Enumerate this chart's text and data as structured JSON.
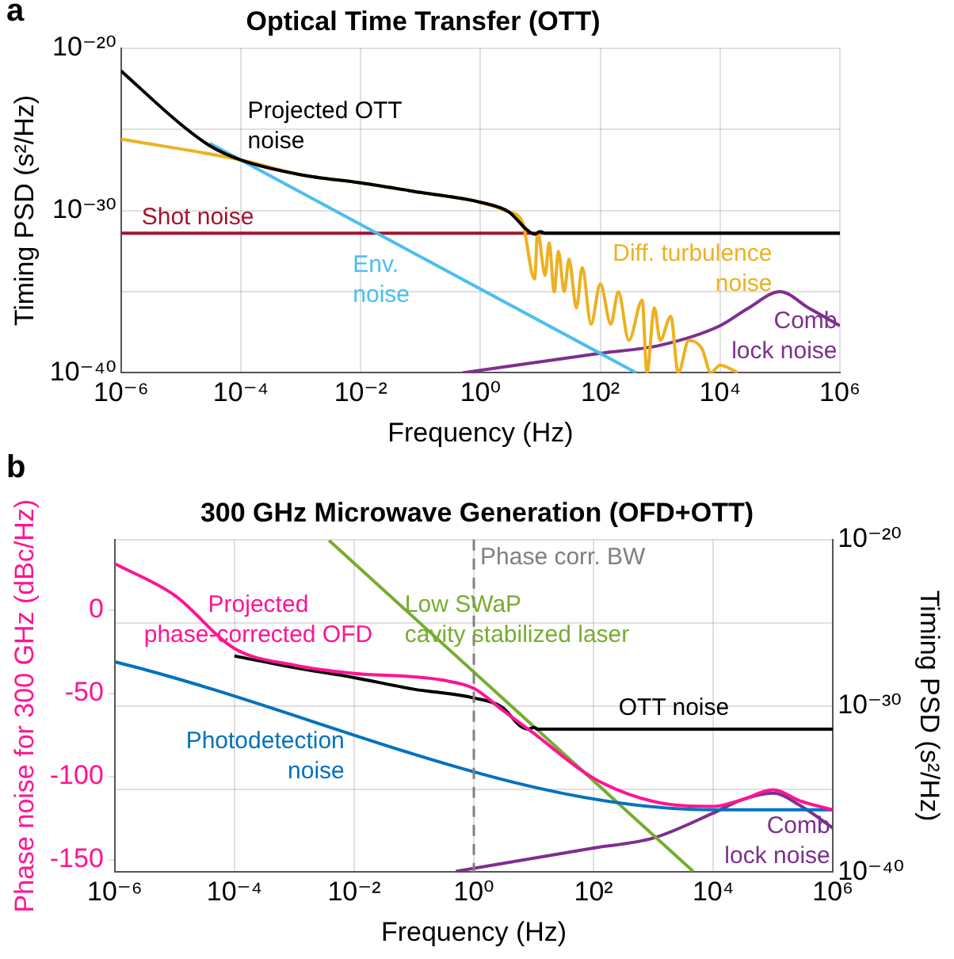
{
  "chart_data": [
    {
      "type": "line",
      "title": "Optical Time Transfer (OTT)",
      "xlabel": "Frequency (Hz)",
      "ylabel": "Timing PSD (s²/Hz)",
      "annotations": [
        "a"
      ],
      "log": "xy",
      "grid": true,
      "legend": false,
      "marker": "none",
      "line_style": "solid",
      "xlim": [
        1e-06,
        1000000.0
      ],
      "ylim": [
        1e-40,
        1e-20
      ],
      "xticks": [
        {
          "value": 1e-06,
          "label": "10⁻⁶"
        },
        {
          "value": 0.0001,
          "label": "10⁻⁴"
        },
        {
          "value": 0.01,
          "label": "10⁻²"
        },
        {
          "value": 1,
          "label": "10⁰"
        },
        {
          "value": 100,
          "label": "10²"
        },
        {
          "value": 10000,
          "label": "10⁴"
        },
        {
          "value": 1000000,
          "label": "10⁶"
        }
      ],
      "yticks": [
        {
          "value": 1e-40,
          "label": "10⁻⁴⁰"
        },
        {
          "value": 1e-35,
          "label": null
        },
        {
          "value": 1e-30,
          "label": "10⁻³⁰"
        },
        {
          "value": 1e-25,
          "label": null
        },
        {
          "value": 1e-20,
          "label": "10⁻²⁰"
        }
      ],
      "series": [
        {
          "name": "Projected OTT noise",
          "color": "#000000",
          "x": [
            1e-06,
            1e-05,
            3e-05,
            0.0001,
            0.001,
            0.01,
            0.1,
            1,
            3,
            6,
            8,
            10,
            12,
            1000000.0
          ],
          "values": [
            4e-22,
            2e-25,
            1e-26,
            1.3e-27,
            1.6e-28,
            5e-29,
            1.3e-29,
            3.2e-30,
            8e-31,
            6.3e-32,
            3.5e-32,
            5e-32,
            4e-32,
            4e-32
          ]
        },
        {
          "name": "Diff. turbulence noise",
          "color": "#edb120",
          "x": [
            1e-06,
            0.0001,
            0.001,
            0.01,
            0.1,
            1,
            3,
            5,
            8,
            9,
            12,
            14,
            17,
            20,
            25,
            30,
            40,
            50,
            70,
            100,
            150,
            200,
            300,
            500,
            600,
            800,
            1000,
            1500,
            2000,
            3000,
            5000,
            7000,
            10000,
            20000
          ],
          "values": [
            2.5e-26,
            1.3e-27,
            1.6e-28,
            5e-29,
            1.3e-29,
            3.2e-30,
            8e-31,
            2e-31,
            6e-35,
            5e-32,
            1e-34,
            1e-32,
            1e-35,
            3e-33,
            1e-35,
            1e-33,
            1e-36,
            3e-34,
            1e-37,
            3e-35,
            1e-37,
            1e-35,
            1e-38,
            3e-36,
            1e-40,
            1e-36,
            1e-38,
            3e-37,
            1e-40,
            1e-38,
            3e-39,
            1e-40,
            3e-40,
            1e-40
          ]
        },
        {
          "name": "Env. noise",
          "color": "#4dbeee",
          "x": [
            3e-05,
            400
          ],
          "values": [
            1.4e-26,
            1e-40
          ]
        },
        {
          "name": "Shot noise",
          "color": "#a2142f",
          "x": [
            1e-06,
            1000000.0
          ],
          "values": [
            4e-32,
            4e-32
          ]
        },
        {
          "name": "Comb lock noise",
          "color": "#7e2f8e",
          "x": [
            0.5,
            100,
            1000,
            10000,
            30000,
            100000,
            300000,
            1000000
          ],
          "values": [
            1e-40,
            1.6e-39,
            5e-39,
            8e-38,
            1e-36,
            1e-35,
            1e-36,
            8e-38
          ]
        }
      ]
    },
    {
      "type": "line",
      "title": "300 GHz Microwave Generation (OFD+OTT)",
      "xlabel": "Frequency (Hz)",
      "ylabel": "Timing PSD (s²/Hz)",
      "y2label": "Phase noise for 300 GHz (dBc/Hz)",
      "annotations": [
        "b"
      ],
      "log": "xy",
      "grid": true,
      "legend": false,
      "marker": "none",
      "line_style": "solid",
      "xlim": [
        1e-06,
        1000000.0
      ],
      "ylim": [
        1e-40,
        1e-20
      ],
      "y2lim": [
        -157.5,
        42.5
      ],
      "xticks": [
        {
          "value": 1e-06,
          "label": "10⁻⁶"
        },
        {
          "value": 0.0001,
          "label": "10⁻⁴"
        },
        {
          "value": 0.01,
          "label": "10⁻²"
        },
        {
          "value": 1,
          "label": "10⁰"
        },
        {
          "value": 100,
          "label": "10²"
        },
        {
          "value": 10000,
          "label": "10⁴"
        },
        {
          "value": 1000000,
          "label": "10⁶"
        }
      ],
      "yticks": [
        {
          "value": 1e-40,
          "label": "10⁻⁴⁰"
        },
        {
          "value": 1e-35,
          "label": null
        },
        {
          "value": 1e-30,
          "label": "10⁻³⁰"
        },
        {
          "value": 1e-25,
          "label": null
        },
        {
          "value": 1e-20,
          "label": "10⁻²⁰"
        }
      ],
      "y2ticks": [
        -150,
        -100,
        -50,
        0
      ],
      "ref_lines": [
        {
          "axis": "x",
          "value": 1,
          "label": "Phase corr. BW",
          "color": "#808080",
          "line_style": "dashed"
        }
      ],
      "series": [
        {
          "name": "Projected phase-corrected OFD",
          "color": "#ff1493",
          "axis": "y2",
          "x": [
            1e-06,
            1e-05,
            0.0001,
            0.001,
            0.01,
            0.1,
            0.3,
            1,
            3,
            10,
            100,
            1000,
            10000,
            30000,
            100000,
            300000,
            1000000
          ],
          "values": [
            28,
            9,
            -23,
            -33,
            -38,
            -40,
            -42,
            -47,
            -60,
            -74,
            -101,
            -115,
            -118,
            -114,
            -108,
            -115,
            -120
          ]
        },
        {
          "name": "OTT noise",
          "color": "#000000",
          "x": [
            0.0001,
            0.001,
            0.01,
            0.1,
            1,
            3,
            6,
            8,
            10,
            12,
            1000000.0
          ],
          "values": [
            1e-27,
            2e-28,
            5e-29,
            1e-29,
            3e-30,
            8e-31,
            6e-32,
            4e-32,
            5e-32,
            4e-32,
            4e-32
          ]
        },
        {
          "name": "Photodetection noise",
          "color": "#0072bd",
          "axis": "y2",
          "x": [
            1e-06,
            10000,
            1000000
          ],
          "values": [
            -31,
            -120,
            -120
          ]
        },
        {
          "name": "Low SWaP cavity stabilized laser",
          "color": "#77ac30",
          "axis": "y2",
          "x": [
            0.0038,
            4600
          ],
          "values": [
            42,
            -157
          ]
        },
        {
          "name": "Comb lock noise",
          "color": "#7e2f8e",
          "x": [
            0.5,
            100,
            1000,
            10000,
            30000,
            100000,
            300000,
            1000000
          ],
          "axis": "y2",
          "values": [
            -157,
            -143,
            -137,
            -122,
            -114,
            -110,
            -118,
            -131
          ]
        }
      ]
    }
  ]
}
